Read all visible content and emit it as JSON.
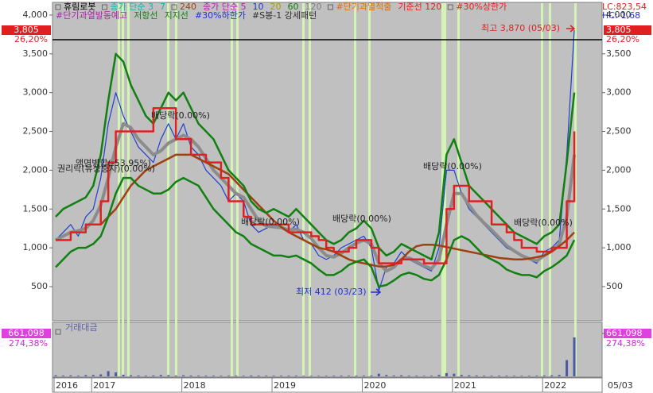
{
  "chart_data": {
    "type": "line",
    "legend": {
      "rows": [
        [
          {
            "text": "휴림로봇",
            "color": "#000000"
          },
          {
            "text": "종가 단순 3",
            "color": "#18b0b0"
          },
          {
            "text": "7",
            "color": "#18b0b0"
          },
          {
            "text": "240",
            "color": "#a04010"
          },
          {
            "text": "종가 단순 5",
            "color": "#b020b0"
          },
          {
            "text": "10",
            "color": "#2030d0"
          },
          {
            "text": "20",
            "color": "#a0a000"
          },
          {
            "text": "60",
            "color": "#108010"
          },
          {
            "text": "120",
            "color": "#808080"
          },
          {
            "text": "#단기과열적출",
            "color": "#e07000"
          },
          {
            "text": "기준선 120",
            "color": "#e02020"
          },
          {
            "text": "#30%상한가",
            "color": "#e02020"
          }
        ],
        [
          {
            "text": "#단기과열발동예고",
            "color": "#b020b0"
          },
          {
            "text": "저항선",
            "color": "#108010"
          },
          {
            "text": "지지선",
            "color": "#108010"
          },
          {
            "text": "#30%하한가",
            "color": "#2030d0"
          },
          {
            "text": "#S봉-1 강세패턴",
            "color": "#303030"
          }
        ]
      ]
    },
    "top_right": [
      "LC:823,54",
      "HC:-1,68"
    ],
    "price_box": {
      "value": "3,805",
      "change": "26,20%"
    },
    "categories": [
      "2016",
      null,
      null,
      null,
      null,
      "2017",
      null,
      null,
      null,
      null,
      null,
      null,
      null,
      null,
      null,
      null,
      null,
      "2018",
      null,
      null,
      null,
      null,
      null,
      null,
      null,
      null,
      null,
      null,
      null,
      "2019",
      null,
      null,
      null,
      null,
      null,
      null,
      null,
      null,
      null,
      null,
      null,
      "2020",
      null,
      null,
      null,
      null,
      null,
      null,
      null,
      null,
      null,
      null,
      null,
      "2021",
      null,
      null,
      null,
      null,
      null,
      null,
      null,
      null,
      null,
      null,
      null,
      "2022",
      null,
      null,
      null,
      "05/03"
    ],
    "ylim": [
      70,
      4153
    ],
    "yticks": [
      500,
      {
        "value": 1000,
        "label": "1,000"
      },
      {
        "value": 1500,
        "label": "1,500"
      },
      {
        "value": 2000,
        "label": "2,000"
      },
      {
        "value": 2500,
        "label": "2,500"
      },
      {
        "value": 3000,
        "label": "3,000"
      },
      {
        "value": 3500,
        "label": "3,500"
      },
      {
        "value": 4000,
        "label": "4,000"
      }
    ],
    "series": [
      {
        "color": "#1f3fd0",
        "values": [
          1100,
          1200,
          1300,
          1150,
          1400,
          1500,
          1900,
          2600,
          3000,
          2700,
          2500,
          2300,
          2200,
          2100,
          2400,
          2600,
          2400,
          2600,
          2300,
          2200,
          2000,
          1900,
          1800,
          1600,
          1700,
          1600,
          1300,
          1200,
          1250,
          1300,
          1250,
          1200,
          1300,
          1100,
          1050,
          900,
          850,
          900,
          1000,
          1050,
          1100,
          1150,
          1000,
          450,
          750,
          800,
          950,
          850,
          800,
          750,
          700,
          1000,
          2000,
          2000,
          1700,
          1500,
          1400,
          1300,
          1200,
          1100,
          1000,
          950,
          900,
          850,
          800,
          950,
          1000,
          1100,
          2200,
          3805
        ]
      },
      {
        "color": "#8c8c8c",
        "values": [
          1100,
          1150,
          1200,
          1220,
          1250,
          1350,
          1550,
          1900,
          2300,
          2600,
          2550,
          2400,
          2300,
          2200,
          2250,
          2350,
          2400,
          2450,
          2400,
          2300,
          2150,
          2000,
          1900,
          1800,
          1700,
          1650,
          1500,
          1350,
          1280,
          1270,
          1260,
          1230,
          1240,
          1200,
          1120,
          1000,
          900,
          880,
          930,
          1000,
          1060,
          1100,
          1050,
          800,
          700,
          750,
          850,
          870,
          820,
          770,
          730,
          850,
          1300,
          1700,
          1700,
          1550,
          1420,
          1320,
          1230,
          1130,
          1030,
          960,
          900,
          860,
          830,
          900,
          960,
          1050,
          1400,
          2200
        ]
      },
      {
        "color": "#a04010",
        "values": [
          null,
          null,
          null,
          null,
          null,
          null,
          1300,
          1400,
          1500,
          1650,
          1800,
          1900,
          2000,
          2050,
          2100,
          2150,
          2200,
          2200,
          2200,
          2150,
          2100,
          2050,
          2000,
          1950,
          1850,
          1750,
          1650,
          1550,
          1450,
          1350,
          1270,
          1200,
          1150,
          1100,
          1050,
          1000,
          980,
          950,
          900,
          850,
          820,
          800,
          780,
          760,
          760,
          780,
          850,
          950,
          1020,
          1040,
          1040,
          1030,
          1010,
          990,
          970,
          950,
          930,
          910,
          890,
          870,
          860,
          850,
          850,
          860,
          880,
          900,
          950,
          1020,
          1100,
          1200
        ]
      },
      {
        "color": "#108010",
        "values": [
          1400,
          1500,
          1550,
          1600,
          1650,
          1800,
          2200,
          2900,
          3500,
          3400,
          3100,
          2900,
          2700,
          2600,
          2800,
          3000,
          2900,
          3000,
          2800,
          2600,
          2500,
          2400,
          2200,
          2000,
          1900,
          1800,
          1600,
          1500,
          1450,
          1500,
          1450,
          1400,
          1500,
          1400,
          1300,
          1200,
          1100,
          1050,
          1100,
          1200,
          1250,
          1350,
          1250,
          1000,
          900,
          950,
          1050,
          1000,
          950,
          900,
          850,
          1200,
          2200,
          2400,
          2100,
          1800,
          1700,
          1600,
          1500,
          1400,
          1300,
          1200,
          1150,
          1100,
          1050,
          1150,
          1200,
          1300,
          2100,
          3000
        ]
      },
      {
        "color": "#108010",
        "values": [
          750,
          850,
          950,
          1000,
          1000,
          1050,
          1150,
          1400,
          1700,
          1900,
          1900,
          1800,
          1750,
          1700,
          1700,
          1750,
          1850,
          1900,
          1850,
          1800,
          1650,
          1500,
          1400,
          1300,
          1200,
          1150,
          1050,
          1000,
          950,
          900,
          900,
          880,
          900,
          850,
          800,
          720,
          650,
          650,
          700,
          780,
          820,
          850,
          750,
          500,
          520,
          580,
          650,
          680,
          650,
          600,
          580,
          650,
          850,
          1100,
          1150,
          1100,
          1000,
          900,
          850,
          800,
          720,
          680,
          650,
          650,
          620,
          700,
          750,
          820,
          900,
          1100
        ]
      },
      {
        "color": "#e02020",
        "values": [
          1100,
          1100,
          1200,
          1200,
          1300,
          1300,
          1600,
          2100,
          2500,
          2500,
          2500,
          2500,
          2500,
          2800,
          2800,
          2800,
          2400,
          2400,
          2200,
          2200,
          2100,
          2100,
          1900,
          1600,
          1600,
          1400,
          1300,
          1300,
          1300,
          1300,
          1300,
          1200,
          1200,
          1200,
          1150,
          1100,
          1000,
          950,
          950,
          1000,
          1100,
          1100,
          1000,
          800,
          800,
          800,
          850,
          850,
          850,
          800,
          800,
          800,
          1500,
          1800,
          1800,
          1600,
          1600,
          1600,
          1300,
          1300,
          1200,
          1100,
          1000,
          1000,
          950,
          950,
          1000,
          1000,
          1600,
          2500
        ]
      }
    ],
    "volume": {
      "title": "거래대금",
      "color": "#4a58a8",
      "vlim": [
        0,
        661098
      ],
      "vticks": [
        {
          "value": 661098,
          "label": "661,098"
        }
      ],
      "ratio": "274,38%",
      "values": [
        15000,
        12000,
        14000,
        10000,
        18000,
        20000,
        30000,
        80000,
        60000,
        25000,
        15000,
        12000,
        10000,
        12000,
        20000,
        18000,
        12000,
        15000,
        12000,
        10000,
        10000,
        9000,
        9000,
        9000,
        10000,
        9000,
        12000,
        10000,
        9000,
        9000,
        9000,
        9000,
        10000,
        9000,
        8000,
        8000,
        8000,
        9000,
        10000,
        9000,
        10000,
        10000,
        12000,
        40000,
        20000,
        12000,
        15000,
        10000,
        9000,
        8000,
        9000,
        20000,
        50000,
        40000,
        20000,
        15000,
        12000,
        10000,
        9000,
        9000,
        9000,
        8000,
        8000,
        8000,
        9000,
        12000,
        15000,
        20000,
        250000,
        600000
      ]
    },
    "annotations": [
      "최고 3,870 (05/03)",
      "최저 412 (03/23)",
      "배당락(0.00%)",
      "배당락(0.00%)",
      "배당락(0.00%)",
      "배당락(0.00%)",
      "배당락(0.00%)",
      "액면병합(-53.95%)",
      "권리락(유상증자)(0.00%)"
    ]
  }
}
